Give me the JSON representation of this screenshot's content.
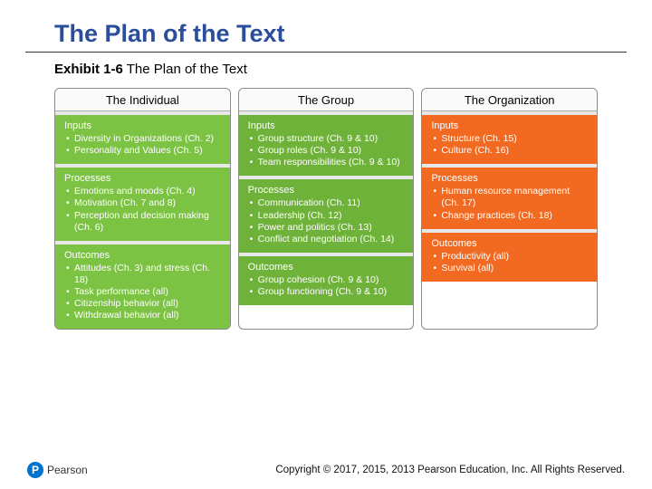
{
  "title": {
    "text": "The Plan of the Text",
    "color": "#2a4e9b"
  },
  "subtitle": {
    "bold": "Exhibit 1-6",
    "rest": " The Plan of the Text"
  },
  "section_gap_color": "#e8e8e8",
  "columns": [
    {
      "header": "The Individual",
      "bg": "#7cc243",
      "text_color": "#ffffff",
      "sections": [
        {
          "head": "Inputs",
          "items": [
            "Diversity in Organizations (Ch. 2)",
            "Personality and Values (Ch. 5)"
          ]
        },
        {
          "head": "Processes",
          "items": [
            "Emotions and moods (Ch. 4)",
            "Motivation (Ch. 7 and 8)",
            "Perception and decision making (Ch. 6)"
          ]
        },
        {
          "head": "Outcomes",
          "items": [
            "Attitudes (Ch. 3) and stress (Ch. 18)",
            "Task performance (all)",
            "Citizenship behavior (all)",
            "Withdrawal behavior (all)"
          ]
        }
      ]
    },
    {
      "header": "The Group",
      "bg": "#6fb23a",
      "text_color": "#ffffff",
      "sections": [
        {
          "head": "Inputs",
          "items": [
            "Group structure (Ch. 9 & 10)",
            "Group roles (Ch. 9 & 10)",
            "Team responsibilities (Ch. 9 & 10)"
          ]
        },
        {
          "head": "Processes",
          "items": [
            "Communication (Ch. 11)",
            "Leadership (Ch. 12)",
            "Power and politics (Ch. 13)",
            "Conflict and negotiation (Ch. 14)"
          ]
        },
        {
          "head": "Outcomes",
          "items": [
            "Group cohesion (Ch. 9 & 10)",
            "Group functioning (Ch. 9 & 10)"
          ]
        }
      ]
    },
    {
      "header": "The Organization",
      "bg": "#f26a21",
      "text_color": "#ffffff",
      "sections": [
        {
          "head": "Inputs",
          "items": [
            "Structure (Ch. 15)",
            "Culture (Ch. 16)"
          ]
        },
        {
          "head": "Processes",
          "items": [
            "Human resource management (Ch. 17)",
            "Change practices (Ch. 18)"
          ]
        },
        {
          "head": "Outcomes",
          "items": [
            "Productivity (all)",
            "Survival (all)"
          ]
        }
      ]
    }
  ],
  "footer": {
    "logo_badge_bg": "#0073cf",
    "logo_letter": "P",
    "logo_text": "Pearson",
    "copyright": "Copyright © 2017, 2015, 2013 Pearson Education, Inc. All Rights Reserved."
  }
}
